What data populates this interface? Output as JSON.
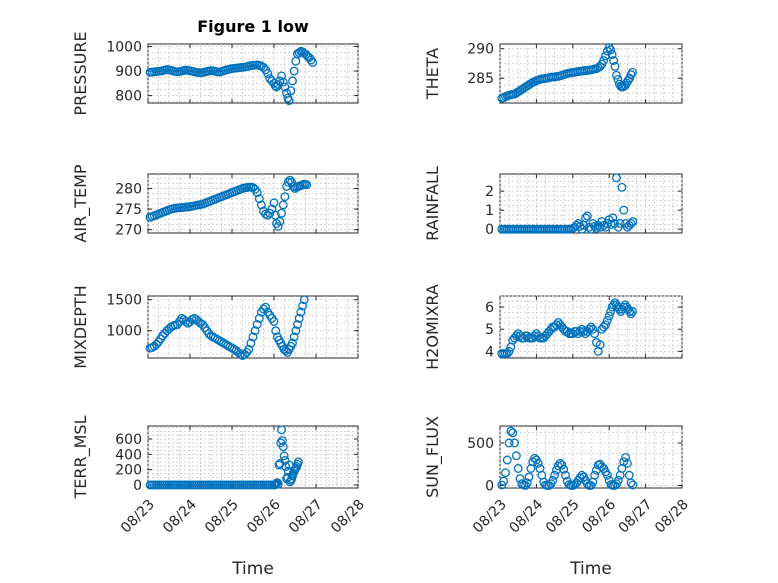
{
  "chart_data": [
    {
      "type": "scatter",
      "title": "Figure 1 low",
      "ylabel": "PRESSURE",
      "xlabel": "",
      "xlim": [
        0,
        5
      ],
      "ylim": [
        770,
        1010
      ],
      "yticks": [
        800,
        900,
        1000
      ],
      "xticklabels": [],
      "grid": true,
      "color": "#0072bd",
      "x": [
        0.05,
        0.1,
        0.15,
        0.2,
        0.25,
        0.3,
        0.35,
        0.4,
        0.45,
        0.5,
        0.55,
        0.6,
        0.65,
        0.7,
        0.75,
        0.8,
        0.85,
        0.9,
        0.95,
        1.0,
        1.05,
        1.1,
        1.15,
        1.2,
        1.25,
        1.3,
        1.35,
        1.4,
        1.45,
        1.5,
        1.55,
        1.6,
        1.65,
        1.7,
        1.75,
        1.8,
        1.85,
        1.9,
        1.95,
        2.0,
        2.05,
        2.1,
        2.15,
        2.2,
        2.25,
        2.3,
        2.35,
        2.4,
        2.45,
        2.5,
        2.55,
        2.6,
        2.65,
        2.7,
        2.75,
        2.8,
        2.85,
        2.9,
        2.95,
        3.0,
        3.03,
        3.06,
        3.1,
        3.14,
        3.18,
        3.22,
        3.26,
        3.3,
        3.33,
        3.36,
        3.4,
        3.44,
        3.48,
        3.52,
        3.56,
        3.6,
        3.64,
        3.68,
        3.72,
        3.76,
        3.8,
        3.84,
        3.88,
        3.92
      ],
      "y": [
        895,
        896,
        897,
        898,
        899,
        900,
        902,
        904,
        906,
        905,
        903,
        900,
        898,
        897,
        898,
        900,
        902,
        904,
        903,
        901,
        899,
        897,
        895,
        894,
        893,
        894,
        896,
        898,
        900,
        902,
        901,
        899,
        897,
        896,
        898,
        901,
        904,
        906,
        908,
        910,
        911,
        912,
        913,
        914,
        915,
        916,
        918,
        920,
        922,
        923,
        924,
        925,
        923,
        920,
        915,
        905,
        890,
        870,
        860,
        850,
        840,
        835,
        845,
        860,
        880,
        855,
        835,
        810,
        790,
        780,
        820,
        860,
        900,
        940,
        970,
        975,
        980,
        978,
        972,
        968,
        960,
        955,
        945,
        935
      ]
    },
    {
      "type": "scatter",
      "ylabel": "THETA",
      "xlabel": "",
      "xlim": [
        0,
        5
      ],
      "ylim": [
        280.8,
        290.8
      ],
      "yticks": [
        280,
        285,
        290
      ],
      "xticklabels": [],
      "grid": true,
      "color": "#0072bd",
      "x": [
        0.05,
        0.1,
        0.15,
        0.2,
        0.25,
        0.3,
        0.35,
        0.4,
        0.45,
        0.5,
        0.55,
        0.6,
        0.65,
        0.7,
        0.75,
        0.8,
        0.85,
        0.9,
        0.95,
        1.0,
        1.05,
        1.1,
        1.15,
        1.2,
        1.25,
        1.3,
        1.35,
        1.4,
        1.45,
        1.5,
        1.55,
        1.6,
        1.65,
        1.7,
        1.75,
        1.8,
        1.85,
        1.9,
        1.95,
        2.0,
        2.05,
        2.1,
        2.15,
        2.2,
        2.25,
        2.3,
        2.35,
        2.4,
        2.45,
        2.5,
        2.55,
        2.6,
        2.65,
        2.7,
        2.75,
        2.8,
        2.85,
        2.9,
        2.95,
        3.0,
        3.04,
        3.08,
        3.12,
        3.16,
        3.2,
        3.24,
        3.28,
        3.32,
        3.36,
        3.4,
        3.44,
        3.48,
        3.52,
        3.56,
        3.6,
        3.64
      ],
      "y": [
        281.6,
        281.7,
        281.9,
        282.0,
        282.1,
        282.2,
        282.3,
        282.3,
        282.5,
        282.7,
        282.9,
        283.1,
        283.3,
        283.5,
        283.7,
        283.9,
        284.1,
        284.3,
        284.4,
        284.6,
        284.7,
        284.8,
        284.9,
        284.9,
        285.0,
        285.0,
        285.1,
        285.2,
        285.2,
        285.2,
        285.3,
        285.3,
        285.4,
        285.5,
        285.6,
        285.7,
        285.8,
        285.9,
        285.9,
        286.0,
        286.0,
        286.1,
        286.1,
        286.2,
        286.2,
        286.3,
        286.3,
        286.3,
        286.4,
        286.4,
        286.5,
        286.6,
        286.6,
        286.8,
        287.0,
        287.4,
        288.0,
        288.8,
        289.6,
        290.2,
        289.8,
        289.0,
        288.0,
        287.0,
        285.5,
        284.8,
        284.0,
        283.6,
        283.5,
        283.6,
        283.8,
        284.2,
        284.6,
        285.0,
        285.6,
        286.0
      ]
    },
    {
      "type": "scatter",
      "ylabel": "AIR_TEMP",
      "xlabel": "",
      "xlim": [
        0,
        5
      ],
      "ylim": [
        269.2,
        283.5
      ],
      "yticks": [
        270,
        275,
        280
      ],
      "xticklabels": [],
      "grid": true,
      "color": "#0072bd",
      "x": [
        0.05,
        0.1,
        0.15,
        0.2,
        0.25,
        0.3,
        0.35,
        0.4,
        0.45,
        0.5,
        0.55,
        0.6,
        0.65,
        0.7,
        0.75,
        0.8,
        0.85,
        0.9,
        0.95,
        1.0,
        1.05,
        1.1,
        1.15,
        1.2,
        1.25,
        1.3,
        1.35,
        1.4,
        1.45,
        1.5,
        1.55,
        1.6,
        1.65,
        1.7,
        1.75,
        1.8,
        1.85,
        1.9,
        1.95,
        2.0,
        2.05,
        2.1,
        2.15,
        2.2,
        2.25,
        2.3,
        2.35,
        2.4,
        2.45,
        2.5,
        2.55,
        2.6,
        2.65,
        2.7,
        2.75,
        2.8,
        2.85,
        2.9,
        2.95,
        3.0,
        3.03,
        3.06,
        3.1,
        3.14,
        3.18,
        3.22,
        3.26,
        3.3,
        3.34,
        3.38,
        3.42,
        3.46,
        3.5,
        3.54,
        3.58,
        3.62,
        3.66,
        3.7,
        3.74,
        3.78
      ],
      "y": [
        273.0,
        273.2,
        273.4,
        273.6,
        273.8,
        274.0,
        274.2,
        274.4,
        274.6,
        274.8,
        275.0,
        275.1,
        275.2,
        275.3,
        275.3,
        275.4,
        275.4,
        275.5,
        275.5,
        275.6,
        275.7,
        275.8,
        275.9,
        276.0,
        276.1,
        276.2,
        276.4,
        276.6,
        276.8,
        277.0,
        277.2,
        277.4,
        277.6,
        277.8,
        278.0,
        278.2,
        278.4,
        278.6,
        278.8,
        279.0,
        279.2,
        279.4,
        279.6,
        279.8,
        280.0,
        280.1,
        280.2,
        280.3,
        280.3,
        280.2,
        279.8,
        279.0,
        277.5,
        276.0,
        274.5,
        273.8,
        273.5,
        274.0,
        275.0,
        276.5,
        273.5,
        271.5,
        270.8,
        272.0,
        274.0,
        276.0,
        278.0,
        280.5,
        281.5,
        282.0,
        281.5,
        280.5,
        280.0,
        280.3,
        280.5,
        280.6,
        280.8,
        281.0,
        281.0,
        280.9
      ]
    },
    {
      "type": "scatter",
      "ylabel": "RAINFALL",
      "xlabel": "",
      "xlim": [
        0,
        5
      ],
      "ylim": [
        -0.2,
        2.9
      ],
      "yticks": [
        0,
        1,
        2
      ],
      "xticklabels": [],
      "grid": true,
      "color": "#0072bd",
      "x": [
        0.05,
        0.1,
        0.15,
        0.2,
        0.25,
        0.3,
        0.35,
        0.4,
        0.45,
        0.5,
        0.55,
        0.6,
        0.65,
        0.7,
        0.75,
        0.8,
        0.85,
        0.9,
        0.95,
        1.0,
        1.05,
        1.1,
        1.15,
        1.2,
        1.25,
        1.3,
        1.35,
        1.4,
        1.45,
        1.5,
        1.55,
        1.6,
        1.65,
        1.7,
        1.75,
        1.8,
        1.85,
        1.9,
        1.95,
        2.0,
        2.05,
        2.1,
        2.15,
        2.2,
        2.25,
        2.3,
        2.35,
        2.4,
        2.45,
        2.5,
        2.55,
        2.6,
        2.65,
        2.7,
        2.75,
        2.8,
        2.85,
        2.9,
        2.95,
        3.0,
        3.05,
        3.1,
        3.15,
        3.2,
        3.25,
        3.3,
        3.35,
        3.4,
        3.45,
        3.5,
        3.55,
        3.6,
        3.65
      ],
      "y": [
        0,
        0,
        0,
        0,
        0,
        0,
        0,
        0,
        0,
        0,
        0,
        0,
        0,
        0,
        0,
        0,
        0,
        0,
        0,
        0,
        0,
        0,
        0,
        0,
        0,
        0,
        0,
        0,
        0,
        0,
        0,
        0,
        0,
        0,
        0,
        0,
        0,
        0,
        0,
        0.05,
        0.1,
        0.2,
        0.3,
        0.15,
        0,
        0.2,
        0.6,
        0.7,
        0.1,
        0,
        0.3,
        0.15,
        0.05,
        0.2,
        0.1,
        0.4,
        0.2,
        0.1,
        0.3,
        0.5,
        0.25,
        0.6,
        0.3,
        2.7,
        0.1,
        0.3,
        2.2,
        1.0,
        0.3,
        0.1,
        0.2,
        0.3,
        0.4
      ]
    },
    {
      "type": "scatter",
      "ylabel": "MIXDEPTH",
      "xlabel": "",
      "xlim": [
        0,
        5
      ],
      "ylim": [
        560,
        1560
      ],
      "yticks": [
        1000,
        1500
      ],
      "xticklabels": [],
      "grid": true,
      "color": "#0072bd",
      "x": [
        0.05,
        0.1,
        0.15,
        0.2,
        0.25,
        0.3,
        0.35,
        0.4,
        0.45,
        0.5,
        0.55,
        0.6,
        0.65,
        0.7,
        0.75,
        0.8,
        0.85,
        0.9,
        0.95,
        1.0,
        1.05,
        1.1,
        1.15,
        1.2,
        1.25,
        1.3,
        1.35,
        1.4,
        1.45,
        1.5,
        1.55,
        1.6,
        1.65,
        1.7,
        1.75,
        1.8,
        1.85,
        1.9,
        1.95,
        2.0,
        2.05,
        2.1,
        2.15,
        2.2,
        2.25,
        2.3,
        2.35,
        2.4,
        2.45,
        2.5,
        2.55,
        2.6,
        2.65,
        2.7,
        2.75,
        2.8,
        2.85,
        2.9,
        2.95,
        3.0,
        3.04,
        3.08,
        3.12,
        3.16,
        3.2,
        3.24,
        3.28,
        3.32,
        3.36,
        3.4,
        3.44,
        3.48,
        3.52,
        3.56,
        3.6,
        3.64,
        3.68,
        3.72
      ],
      "y": [
        720,
        730,
        750,
        780,
        820,
        870,
        920,
        960,
        1000,
        1030,
        1060,
        1080,
        1090,
        1100,
        1150,
        1200,
        1180,
        1150,
        1120,
        1140,
        1180,
        1200,
        1180,
        1150,
        1120,
        1100,
        1050,
        1000,
        950,
        920,
        900,
        880,
        860,
        840,
        820,
        800,
        780,
        760,
        740,
        720,
        700,
        680,
        650,
        620,
        600,
        620,
        650,
        700,
        800,
        900,
        1000,
        1100,
        1200,
        1300,
        1350,
        1380,
        1300,
        1250,
        1200,
        1150,
        1000,
        900,
        850,
        800,
        750,
        700,
        680,
        650,
        700,
        750,
        800,
        900,
        1000,
        1100,
        1200,
        1300,
        1400,
        1500
      ]
    },
    {
      "type": "scatter",
      "ylabel": "H2OMIXRA",
      "xlabel": "",
      "xlim": [
        0,
        5
      ],
      "ylim": [
        3.7,
        6.5
      ],
      "yticks": [
        4,
        5,
        6
      ],
      "xticklabels": [],
      "grid": true,
      "color": "#0072bd",
      "x": [
        0.05,
        0.1,
        0.15,
        0.2,
        0.25,
        0.3,
        0.35,
        0.4,
        0.45,
        0.5,
        0.55,
        0.6,
        0.65,
        0.7,
        0.75,
        0.8,
        0.85,
        0.9,
        0.95,
        1.0,
        1.05,
        1.1,
        1.15,
        1.2,
        1.25,
        1.3,
        1.35,
        1.4,
        1.45,
        1.5,
        1.55,
        1.6,
        1.65,
        1.7,
        1.75,
        1.8,
        1.85,
        1.9,
        1.95,
        2.0,
        2.05,
        2.1,
        2.15,
        2.2,
        2.25,
        2.3,
        2.35,
        2.4,
        2.45,
        2.5,
        2.55,
        2.6,
        2.65,
        2.7,
        2.75,
        2.8,
        2.85,
        2.9,
        2.95,
        3.0,
        3.04,
        3.08,
        3.12,
        3.16,
        3.2,
        3.24,
        3.28,
        3.32,
        3.36,
        3.4,
        3.44,
        3.48,
        3.52,
        3.56,
        3.6,
        3.64
      ],
      "y": [
        3.9,
        3.9,
        3.9,
        3.9,
        4.0,
        4.2,
        4.5,
        4.6,
        4.7,
        4.8,
        4.7,
        4.6,
        4.6,
        4.7,
        4.7,
        4.6,
        4.6,
        4.6,
        4.7,
        4.8,
        4.7,
        4.6,
        4.6,
        4.6,
        4.7,
        4.8,
        4.9,
        5.0,
        5.1,
        5.1,
        5.2,
        5.3,
        5.2,
        5.1,
        5.0,
        4.9,
        4.9,
        4.8,
        4.8,
        4.8,
        4.9,
        4.9,
        4.8,
        4.9,
        5.0,
        4.9,
        4.8,
        4.9,
        5.0,
        5.1,
        5.0,
        4.8,
        4.4,
        4.0,
        4.3,
        5.0,
        5.1,
        5.2,
        5.4,
        5.6,
        5.8,
        6.0,
        6.1,
        6.2,
        6.1,
        6.0,
        5.9,
        5.8,
        5.9,
        6.0,
        6.1,
        6.0,
        5.9,
        5.8,
        5.7,
        5.8
      ]
    },
    {
      "type": "scatter",
      "ylabel": "TERR_MSL",
      "xlabel": "Time",
      "xlim": [
        0,
        5
      ],
      "ylim": [
        -40,
        770
      ],
      "yticks": [
        0,
        200,
        400,
        600
      ],
      "xticklabels": [
        "08/23",
        "08/24",
        "08/25",
        "08/26",
        "08/27",
        "08/28"
      ],
      "grid": true,
      "color": "#0072bd",
      "x": [
        0.05,
        0.1,
        0.15,
        0.2,
        0.25,
        0.3,
        0.35,
        0.4,
        0.45,
        0.5,
        0.55,
        0.6,
        0.65,
        0.7,
        0.75,
        0.8,
        0.85,
        0.9,
        0.95,
        1.0,
        1.05,
        1.1,
        1.15,
        1.2,
        1.25,
        1.3,
        1.35,
        1.4,
        1.45,
        1.5,
        1.55,
        1.6,
        1.65,
        1.7,
        1.75,
        1.8,
        1.85,
        1.9,
        1.95,
        2.0,
        2.05,
        2.1,
        2.15,
        2.2,
        2.25,
        2.3,
        2.35,
        2.4,
        2.45,
        2.5,
        2.55,
        2.6,
        2.65,
        2.7,
        2.75,
        2.8,
        2.85,
        2.9,
        2.95,
        3.0,
        3.02,
        3.04,
        3.06,
        3.08,
        3.1,
        3.12,
        3.14,
        3.16,
        3.18,
        3.2,
        3.22,
        3.24,
        3.26,
        3.28,
        3.3,
        3.32,
        3.34,
        3.36,
        3.38,
        3.4,
        3.42,
        3.44,
        3.46,
        3.48,
        3.5,
        3.52,
        3.54,
        3.56,
        3.58
      ],
      "y": [
        0,
        0,
        0,
        0,
        0,
        0,
        0,
        0,
        0,
        0,
        0,
        0,
        0,
        0,
        0,
        0,
        0,
        0,
        0,
        0,
        0,
        0,
        0,
        0,
        0,
        0,
        0,
        0,
        0,
        0,
        0,
        0,
        0,
        0,
        0,
        0,
        0,
        0,
        0,
        0,
        0,
        0,
        0,
        0,
        0,
        0,
        0,
        0,
        0,
        0,
        0,
        0,
        0,
        0,
        0,
        0,
        0,
        0,
        0,
        0,
        0,
        10,
        20,
        30,
        10,
        260,
        280,
        550,
        720,
        580,
        500,
        380,
        320,
        240,
        80,
        100,
        180,
        260,
        40,
        60,
        80,
        120,
        150,
        180,
        200,
        220,
        240,
        270,
        300
      ]
    },
    {
      "type": "scatter",
      "ylabel": "SUN_FLUX",
      "xlabel": "Time",
      "xlim": [
        0,
        5
      ],
      "ylim": [
        -30,
        700
      ],
      "yticks": [
        0,
        500
      ],
      "xticklabels": [
        "08/23",
        "08/24",
        "08/25",
        "08/26",
        "08/27",
        "08/28"
      ],
      "grid": true,
      "color": "#0072bd",
      "x": [
        0.05,
        0.1,
        0.15,
        0.2,
        0.25,
        0.3,
        0.35,
        0.4,
        0.45,
        0.5,
        0.55,
        0.6,
        0.65,
        0.7,
        0.75,
        0.8,
        0.85,
        0.9,
        0.95,
        1.0,
        1.05,
        1.1,
        1.15,
        1.2,
        1.25,
        1.3,
        1.35,
        1.4,
        1.45,
        1.5,
        1.55,
        1.6,
        1.65,
        1.7,
        1.75,
        1.8,
        1.85,
        1.9,
        1.95,
        2.0,
        2.05,
        2.1,
        2.15,
        2.2,
        2.25,
        2.3,
        2.35,
        2.4,
        2.45,
        2.5,
        2.55,
        2.6,
        2.65,
        2.7,
        2.75,
        2.8,
        2.85,
        2.9,
        2.95,
        3.0,
        3.05,
        3.1,
        3.15,
        3.2,
        3.25,
        3.3,
        3.35,
        3.4,
        3.45,
        3.5,
        3.55,
        3.6,
        3.65
      ],
      "y": [
        5,
        50,
        150,
        300,
        500,
        640,
        620,
        500,
        350,
        200,
        80,
        20,
        5,
        0,
        30,
        100,
        200,
        280,
        320,
        300,
        260,
        200,
        120,
        40,
        5,
        0,
        0,
        20,
        60,
        120,
        180,
        230,
        260,
        240,
        190,
        120,
        50,
        10,
        0,
        0,
        10,
        30,
        60,
        90,
        120,
        100,
        60,
        20,
        0,
        0,
        40,
        120,
        180,
        240,
        250,
        220,
        200,
        160,
        120,
        60,
        10,
        0,
        0,
        20,
        60,
        120,
        200,
        280,
        330,
        260,
        120,
        30,
        5
      ]
    }
  ]
}
